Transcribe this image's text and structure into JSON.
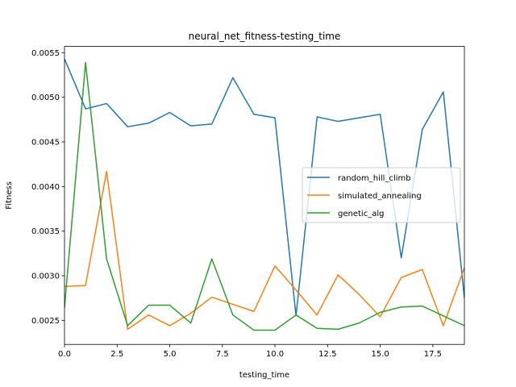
{
  "chart_data": {
    "type": "line",
    "title": "neural_net_fitness-testing_time",
    "xlabel": "testing_time",
    "ylabel": "Fitness",
    "xlim": [
      0,
      19
    ],
    "ylim": [
      0.00223,
      0.00557
    ],
    "x_ticks": [
      0,
      2.5,
      5,
      7.5,
      10,
      12.5,
      15,
      17.5
    ],
    "x_tick_labels": [
      "0.0",
      "2.5",
      "5.0",
      "7.5",
      "10.0",
      "12.5",
      "15.0",
      "17.5"
    ],
    "y_ticks": [
      0.0025,
      0.003,
      0.0035,
      0.004,
      0.0045,
      0.005,
      0.0055
    ],
    "y_tick_labels": [
      "0.0025",
      "0.0030",
      "0.0035",
      "0.0040",
      "0.0045",
      "0.0050",
      "0.0055"
    ],
    "grid": false,
    "legend_position": "center-right",
    "x": [
      0,
      1,
      2,
      3,
      4,
      5,
      6,
      7,
      8,
      9,
      10,
      11,
      12,
      13,
      14,
      15,
      16,
      17,
      18,
      19
    ],
    "series": [
      {
        "name": "random_hill_climb",
        "color": "#1f77b4",
        "values": [
          0.00543,
          0.00487,
          0.00493,
          0.00467,
          0.00471,
          0.00483,
          0.00468,
          0.0047,
          0.00522,
          0.00481,
          0.00477,
          0.00255,
          0.00478,
          0.00473,
          0.00477,
          0.00481,
          0.0032,
          0.00464,
          0.00506,
          0.00275
        ]
      },
      {
        "name": "simulated_annealing",
        "color": "#ff7f0e",
        "values": [
          0.00288,
          0.00289,
          0.00417,
          0.0024,
          0.00256,
          0.00244,
          0.00258,
          0.00276,
          0.00268,
          0.0026,
          0.00311,
          0.00284,
          0.00256,
          0.00301,
          0.00279,
          0.00254,
          0.00298,
          0.00307,
          0.00244,
          0.00309
        ]
      },
      {
        "name": "genetic_alg",
        "color": "#2ca02c",
        "values": [
          0.00264,
          0.00539,
          0.00319,
          0.00244,
          0.00267,
          0.00267,
          0.00247,
          0.00319,
          0.00256,
          0.00239,
          0.00239,
          0.00256,
          0.00241,
          0.0024,
          0.00247,
          0.00259,
          0.00265,
          0.00266,
          0.00255,
          0.00244
        ]
      }
    ]
  }
}
